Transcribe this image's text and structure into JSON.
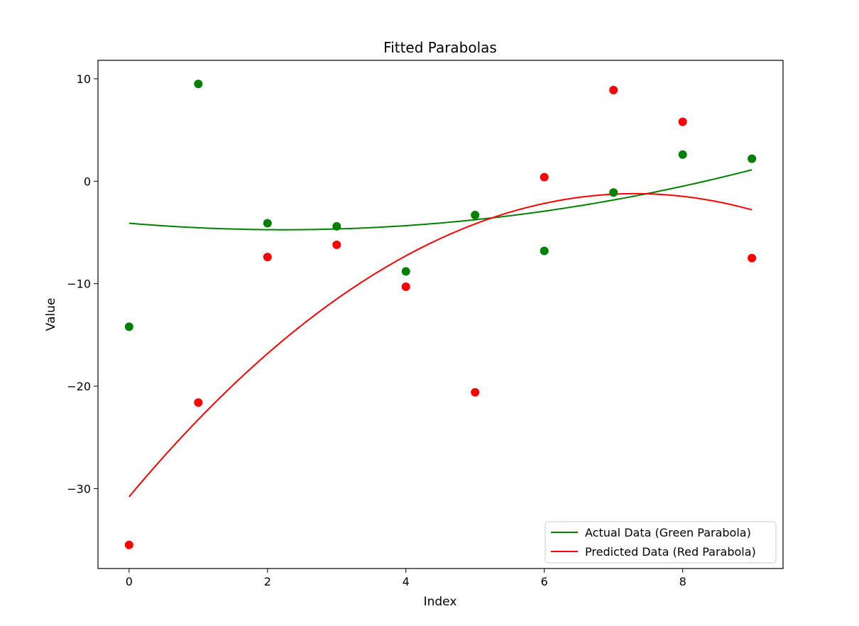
{
  "chart_data": {
    "type": "scatter",
    "title": "Fitted Parabolas",
    "xlabel": "Index",
    "ylabel": "Value",
    "xlim": [
      -0.45,
      9.45
    ],
    "ylim": [
      -37.8,
      11.8
    ],
    "x_ticks": [
      0,
      2,
      4,
      6,
      8
    ],
    "y_ticks": [
      10,
      0,
      -10,
      -20,
      -30
    ],
    "grid": false,
    "legend_position": "lower-right",
    "x": [
      0,
      1,
      2,
      3,
      4,
      5,
      6,
      7,
      8,
      9
    ],
    "series": [
      {
        "name": "Actual Data (Green Parabola)",
        "color": "#008000",
        "points": [
          -14.2,
          9.5,
          -4.1,
          -4.4,
          -8.8,
          -3.3,
          -6.8,
          -1.1,
          2.6,
          2.2
        ],
        "fit_curve": [
          0.1277,
          -0.5698,
          -4.1
        ]
      },
      {
        "name": "Predicted Data (Red Parabola)",
        "color": "#ff0000",
        "points": [
          -35.5,
          -21.6,
          -7.4,
          -6.2,
          -10.3,
          -20.6,
          0.4,
          8.9,
          5.8,
          -7.5
        ],
        "fit_curve": [
          -0.5536,
          8.0942,
          -30.8
        ]
      }
    ]
  }
}
